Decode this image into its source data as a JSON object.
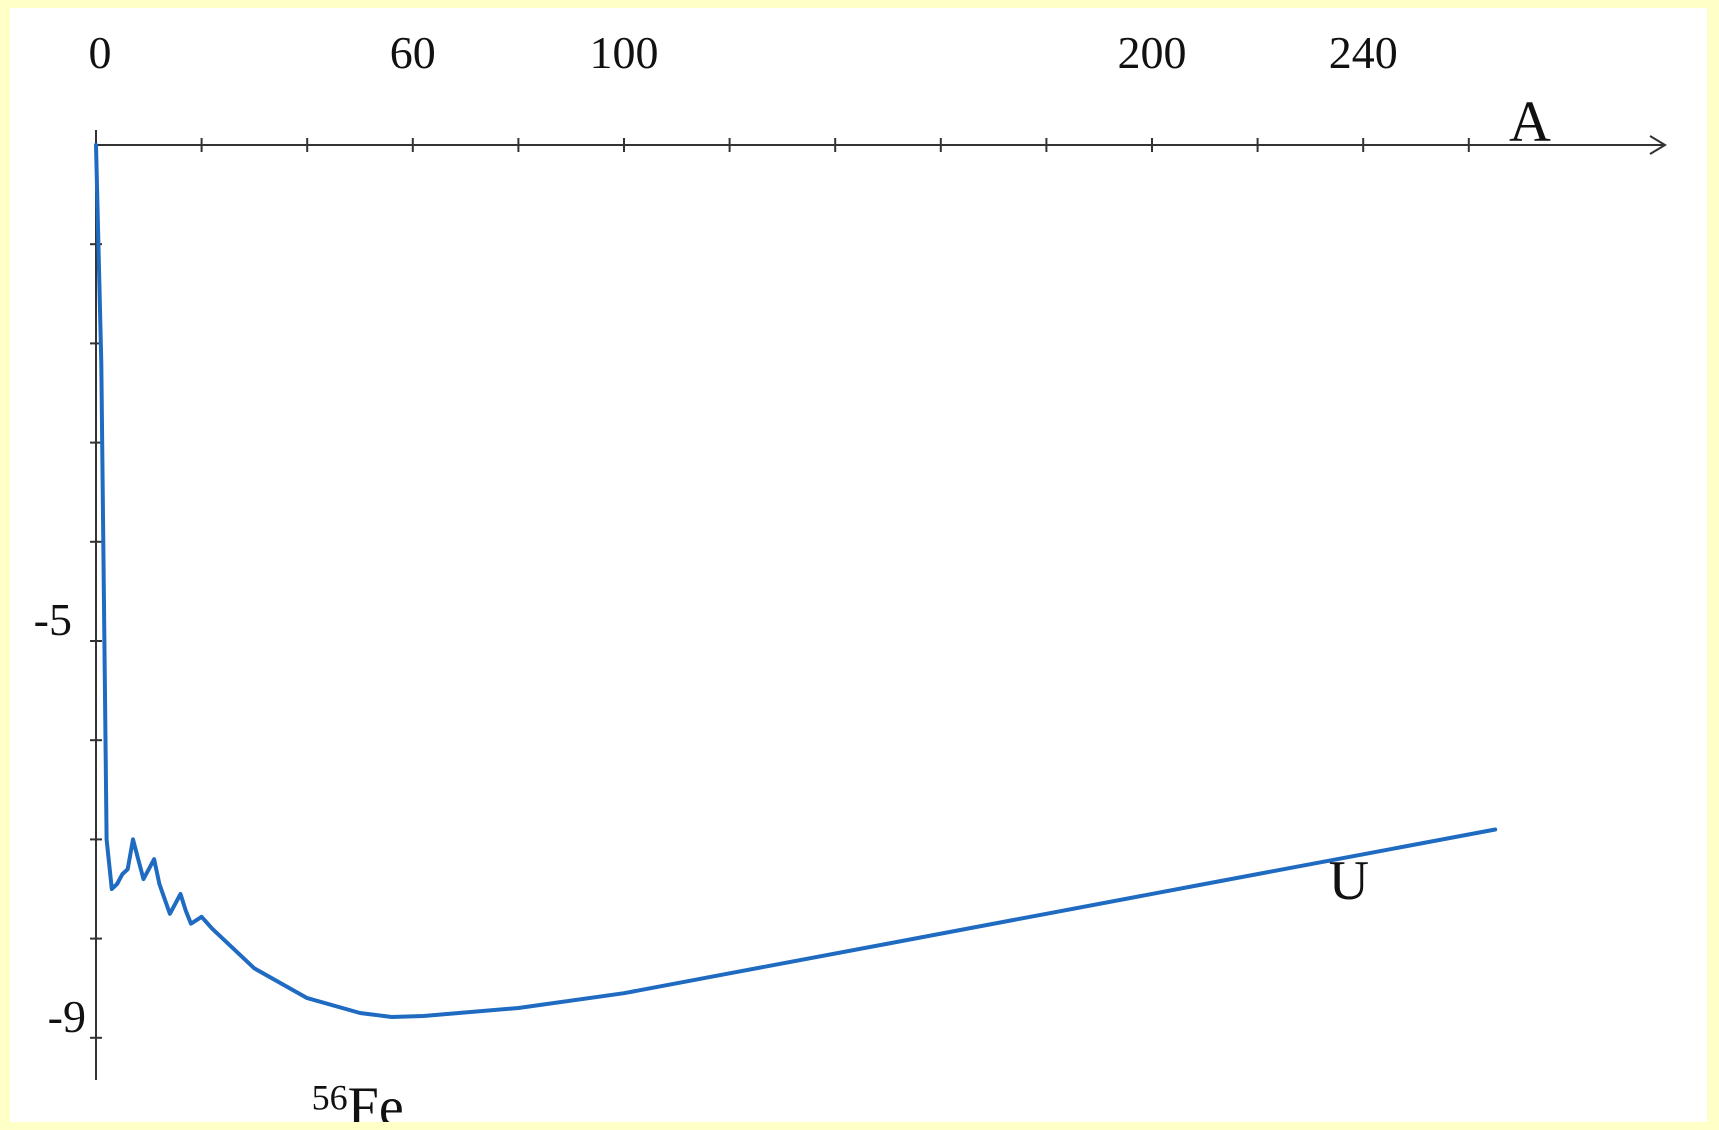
{
  "colors": {
    "page_background": "#ffffc8",
    "panel_background": "#ffffff",
    "axis": "#333333",
    "curve": "#1f6bc1"
  },
  "chart_data": {
    "type": "line",
    "title": "",
    "xlabel": "A",
    "ylabel": "",
    "x_tick_labels": [
      {
        "label": "0",
        "value": 0
      },
      {
        "label": "60",
        "value": 60
      },
      {
        "label": "100",
        "value": 100
      },
      {
        "label": "200",
        "value": 200
      },
      {
        "label": "240",
        "value": 240
      }
    ],
    "y_tick_labels": [
      {
        "label": "-5",
        "value": -5
      },
      {
        "label": "-9",
        "value": -9
      }
    ],
    "xlim": [
      0,
      300
    ],
    "ylim": [
      -9.3,
      0
    ],
    "x_axis_position": "top",
    "grid": false,
    "legend": "none",
    "annotations": [
      {
        "sup": "56",
        "text": "Fe",
        "x": 56,
        "y": -9.1
      },
      {
        "text": "U",
        "x": 238,
        "y": -7.6
      }
    ],
    "series": [
      {
        "color": "#1f6bc1",
        "points": [
          [
            0,
            0
          ],
          [
            1,
            -2.2
          ],
          [
            2,
            -7.0
          ],
          [
            3,
            -7.5
          ],
          [
            4,
            -7.45
          ],
          [
            5,
            -7.35
          ],
          [
            6,
            -7.3
          ],
          [
            7,
            -7.0
          ],
          [
            8,
            -7.2
          ],
          [
            9,
            -7.4
          ],
          [
            10,
            -7.3
          ],
          [
            11,
            -7.2
          ],
          [
            12,
            -7.45
          ],
          [
            13,
            -7.6
          ],
          [
            14,
            -7.75
          ],
          [
            15,
            -7.65
          ],
          [
            16,
            -7.55
          ],
          [
            17,
            -7.72
          ],
          [
            18,
            -7.85
          ],
          [
            20,
            -7.78
          ],
          [
            22,
            -7.9
          ],
          [
            25,
            -8.05
          ],
          [
            30,
            -8.3
          ],
          [
            40,
            -8.6
          ],
          [
            50,
            -8.75
          ],
          [
            56,
            -8.79
          ],
          [
            62,
            -8.78
          ],
          [
            80,
            -8.7
          ],
          [
            100,
            -8.55
          ],
          [
            120,
            -8.35
          ],
          [
            150,
            -8.05
          ],
          [
            180,
            -7.75
          ],
          [
            210,
            -7.45
          ],
          [
            240,
            -7.15
          ],
          [
            265,
            -6.9
          ]
        ]
      }
    ]
  }
}
